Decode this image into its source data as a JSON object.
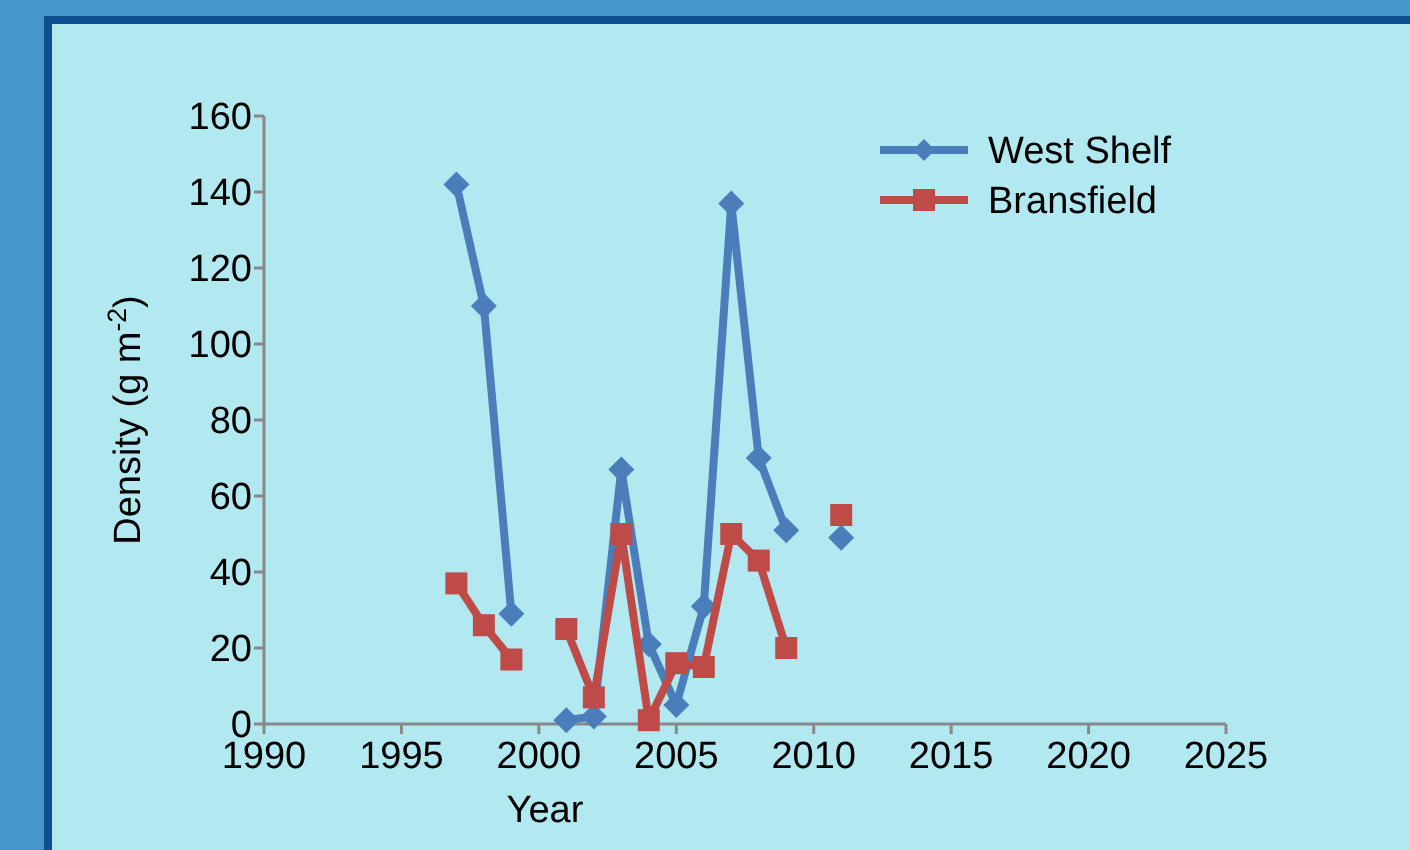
{
  "chart_data": {
    "type": "line",
    "xlabel": "Year",
    "ylabel": "Density (g m$^{-2}$)",
    "x": [
      1997,
      1998,
      1999,
      2000,
      2001,
      2002,
      2003,
      2004,
      2005,
      2006,
      2007,
      2008,
      2009,
      2010,
      2011
    ],
    "series": [
      {
        "name": "West Shelf",
        "color": "#4a7ebb",
        "marker": "diamond",
        "values": [
          142,
          110,
          29,
          null,
          1,
          2,
          67,
          21,
          5,
          31,
          137,
          70,
          51,
          null,
          49
        ]
      },
      {
        "name": "Bransfield",
        "color": "#be4b48",
        "marker": "square",
        "values": [
          37,
          26,
          17,
          null,
          25,
          7,
          50,
          1,
          16,
          15,
          50,
          43,
          20,
          null,
          55
        ]
      }
    ],
    "xlim": [
      1990,
      2025
    ],
    "xticks": [
      1990,
      1995,
      2000,
      2005,
      2010,
      2015,
      2020,
      2025
    ],
    "ylim": [
      0,
      160
    ],
    "yticks": [
      0,
      20,
      40,
      60,
      80,
      100,
      120,
      140,
      160
    ],
    "grid": false,
    "legend": "top right"
  }
}
